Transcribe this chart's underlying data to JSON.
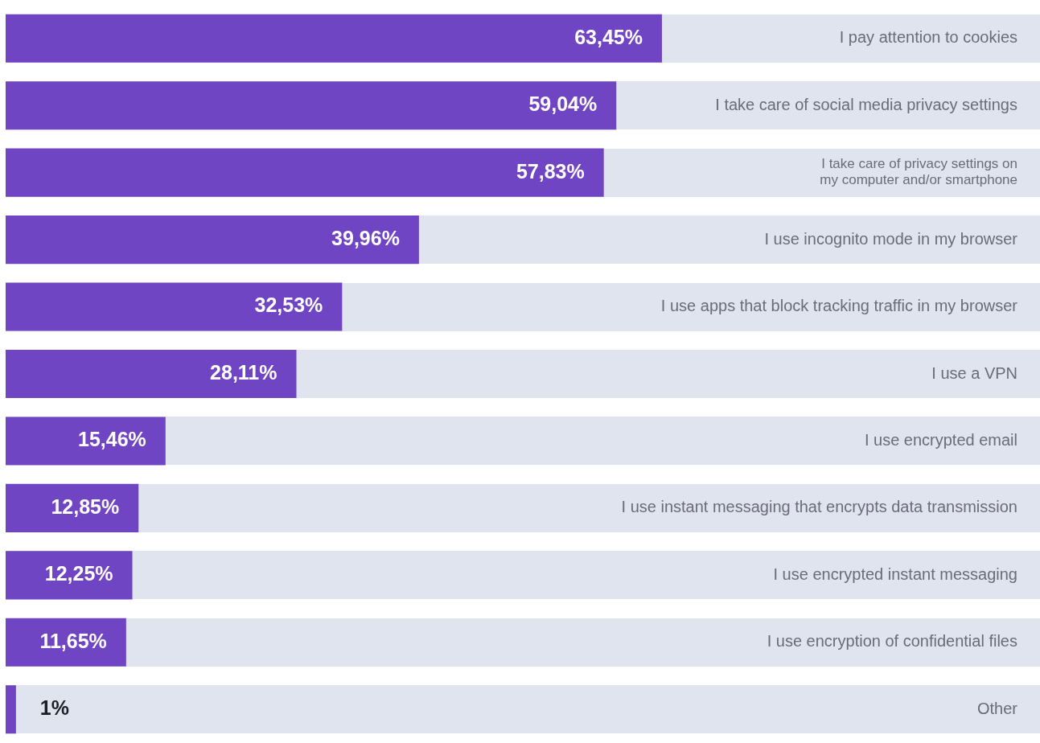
{
  "chart_data": {
    "type": "bar",
    "orientation": "horizontal",
    "tick_labels": "y",
    "categories": [
      "I pay attention to cookies",
      "I take care of social media privacy settings",
      "I take care of privacy settings on my computer and/or smartphone",
      "I use incognito mode in my browser",
      "I use apps that block tracking traffic in my browser",
      "I use a VPN",
      "I use encrypted email",
      "I use instant messaging that encrypts data transmission",
      "I use encrypted instant messaging",
      "I use encryption of confidential files",
      "Other"
    ],
    "values": [
      63.45,
      59.04,
      57.83,
      39.96,
      32.53,
      28.11,
      15.46,
      12.85,
      12.25,
      11.65,
      1
    ],
    "value_labels": [
      "63,45%",
      "59,04%",
      "57,83%",
      "39,96%",
      "32,53%",
      "28,11%",
      "15,46%",
      "12,85%",
      "12,25%",
      "11,65%",
      "1%"
    ],
    "color": "#6f45c3",
    "xlim": [
      0,
      100
    ]
  }
}
